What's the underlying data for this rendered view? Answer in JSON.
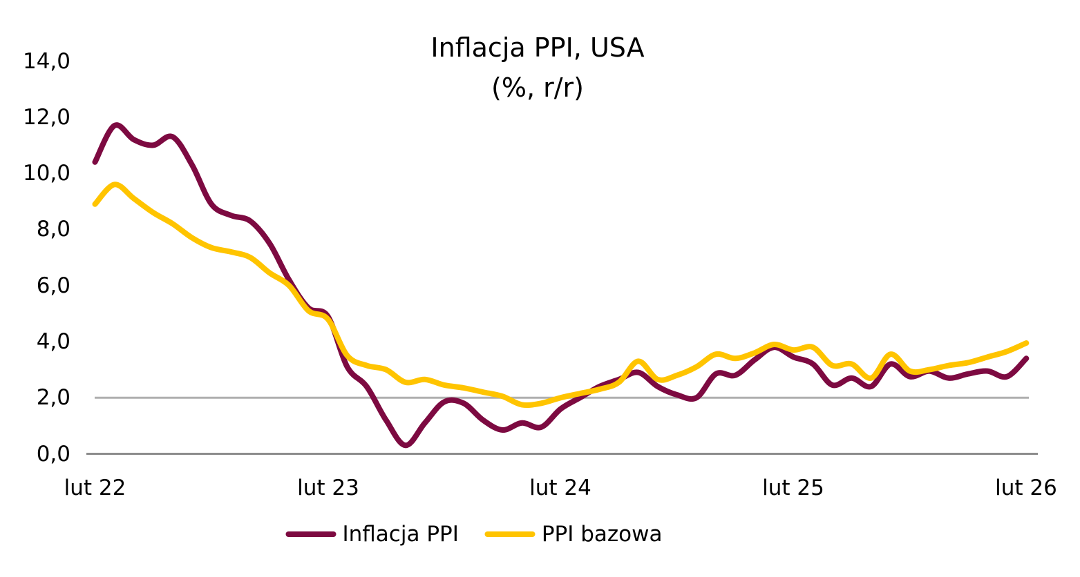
{
  "title": {
    "line1": "Inflacja PPI, USA",
    "line2": "(%, r/r)"
  },
  "y_axis": {
    "labels": [
      "14,0",
      "12,0",
      "10,0",
      "8,0",
      "6,0",
      "4,0",
      "2,0",
      "0,0"
    ],
    "values": [
      14,
      12,
      10,
      8,
      6,
      4,
      2,
      0
    ]
  },
  "x_axis": {
    "labels": [
      "lut 22",
      "lut 23",
      "lut 24",
      "lut 25",
      "lut 26"
    ]
  },
  "legend": {
    "items": [
      {
        "label": "Inflacja PPI",
        "color": "#7D0A41"
      },
      {
        "label": "PPI bazowa",
        "color": "#FFC400"
      }
    ]
  },
  "colors": {
    "series_ppi": "#7D0A41",
    "series_core": "#FFC400",
    "reference_line": "#AFAFAF",
    "axis_line": "#8C8C8C",
    "text": "#000000"
  },
  "chart_data": {
    "type": "line",
    "title": "Inflacja PPI, USA (%, r/r)",
    "x_unit": "months from lut 22 (Feb 2022) to lut 26 (Feb 2026)",
    "x_tick_labels": [
      "lut 22",
      "lut 23",
      "lut 24",
      "lut 25",
      "lut 26"
    ],
    "x_tick_month_index": [
      0,
      12,
      24,
      36,
      48
    ],
    "ylim": [
      0,
      14
    ],
    "y_step": 2,
    "grid": "off",
    "legend_position": "bottom-center",
    "reference_line_y": 2.0,
    "series": [
      {
        "name": "Inflacja PPI",
        "color": "#7D0A41",
        "values": [
          10.4,
          11.7,
          11.2,
          11.0,
          11.3,
          10.3,
          8.9,
          8.5,
          8.3,
          7.5,
          6.2,
          5.2,
          4.9,
          3.1,
          2.4,
          1.2,
          0.3,
          1.1,
          1.85,
          1.8,
          1.2,
          0.85,
          1.1,
          0.95,
          1.6,
          2.0,
          2.4,
          2.65,
          2.9,
          2.4,
          2.1,
          2.0,
          2.85,
          2.8,
          3.35,
          3.8,
          3.45,
          3.2,
          2.45,
          2.7,
          2.4,
          3.2,
          2.75,
          2.95,
          2.7,
          2.85,
          2.95,
          2.75,
          3.4
        ]
      },
      {
        "name": "PPI bazowa",
        "color": "#FFC400",
        "values": [
          8.9,
          9.6,
          9.1,
          8.6,
          8.2,
          7.7,
          7.35,
          7.2,
          7.0,
          6.45,
          6.0,
          5.1,
          4.8,
          3.5,
          3.15,
          3.0,
          2.55,
          2.65,
          2.45,
          2.35,
          2.2,
          2.05,
          1.75,
          1.8,
          2.0,
          2.15,
          2.3,
          2.55,
          3.3,
          2.65,
          2.8,
          3.1,
          3.55,
          3.4,
          3.6,
          3.9,
          3.7,
          3.8,
          3.15,
          3.2,
          2.7,
          3.55,
          2.95,
          3.0,
          3.15,
          3.25,
          3.45,
          3.65,
          3.95
        ]
      }
    ]
  }
}
